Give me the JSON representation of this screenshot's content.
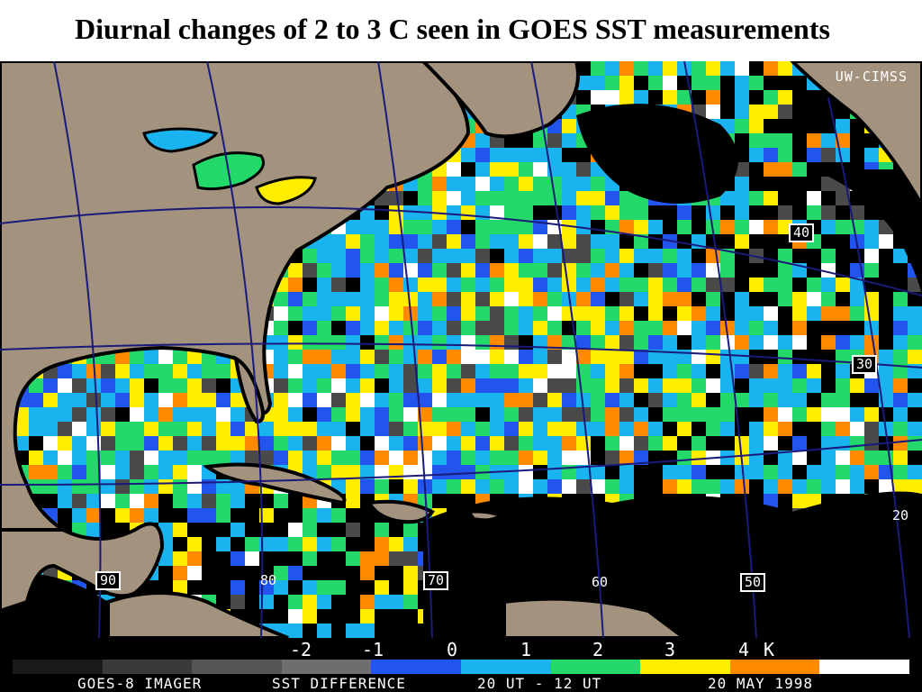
{
  "title": "Diurnal changes of 2 to 3 C seen in GOES SST measurements",
  "map": {
    "credit": "UW-CIMSS",
    "lat_labels": [
      "40",
      "30",
      "20"
    ],
    "lon_labels": [
      "90",
      "80",
      "70",
      "60",
      "50"
    ],
    "colors": {
      "land": "#a2927e",
      "cloud": "#000000",
      "coastline": "#000000",
      "graticule": "#1a1a7a",
      "diff_neg1": "#2255ee",
      "diff_0": "#19b4f0",
      "diff_1": "#22d96a",
      "diff_2": "#ffee00",
      "diff_3": "#ff8a00",
      "diff_4": "#ffffff"
    }
  },
  "legend": {
    "ticks": [
      "-2",
      "-1",
      "0",
      "1",
      "2",
      "3",
      "4",
      "K"
    ],
    "bar_colors": [
      "#1a1a1a",
      "#3a3a3a",
      "#555555",
      "#6e6e6e",
      "#2255ee",
      "#19b4f0",
      "#22d96a",
      "#ffee00",
      "#ff8a00",
      "#ffffff"
    ]
  },
  "caption": {
    "instrument": "GOES-8 IMAGER",
    "product": "SST DIFFERENCE",
    "times": "20 UT - 12 UT",
    "date": "20 MAY 1998"
  }
}
